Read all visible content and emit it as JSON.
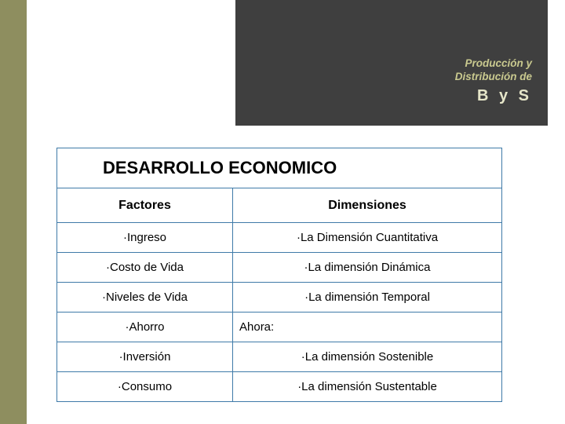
{
  "header": {
    "line1": "Producción y",
    "line2": "Distribución de",
    "line3": "B y S"
  },
  "table": {
    "title": "DESARROLLO ECONOMICO",
    "col_factores": "Factores",
    "col_dimensiones": "Dimensiones",
    "rows": [
      {
        "f": "·Ingreso",
        "d": "·La Dimensión Cuantitativa",
        "hl": false,
        "d_align": "center"
      },
      {
        "f": "·Costo de Vida",
        "d": "·La dimensión  Dinámica",
        "hl": false,
        "d_align": "center"
      },
      {
        "f": "·Niveles de Vida",
        "d": "·La dimensión Temporal",
        "hl": false,
        "d_align": "center"
      },
      {
        "f": "·Ahorro",
        "d": "Ahora:",
        "hl": false,
        "d_align": "left"
      },
      {
        "f": "·Inversión",
        "d": "·La dimensión Sostenible",
        "hl": true,
        "d_align": "center"
      },
      {
        "f": "·Consumo",
        "d": "·La dimensión Sustentable",
        "hl": true,
        "d_align": "center"
      }
    ]
  },
  "style": {
    "sidebar_color": "#8e8e5f",
    "header_bg": "#3f3f3f",
    "header_text_color": "#c9c98f",
    "header_bys_color": "#e6e6c9",
    "border_color": "#3f7aa8",
    "highlight_color": "#b05a00",
    "title_fontsize": 22,
    "header_fontsize": 16,
    "cell_fontsize": 15,
    "col_left_width": 225,
    "col_right_width": 343
  }
}
